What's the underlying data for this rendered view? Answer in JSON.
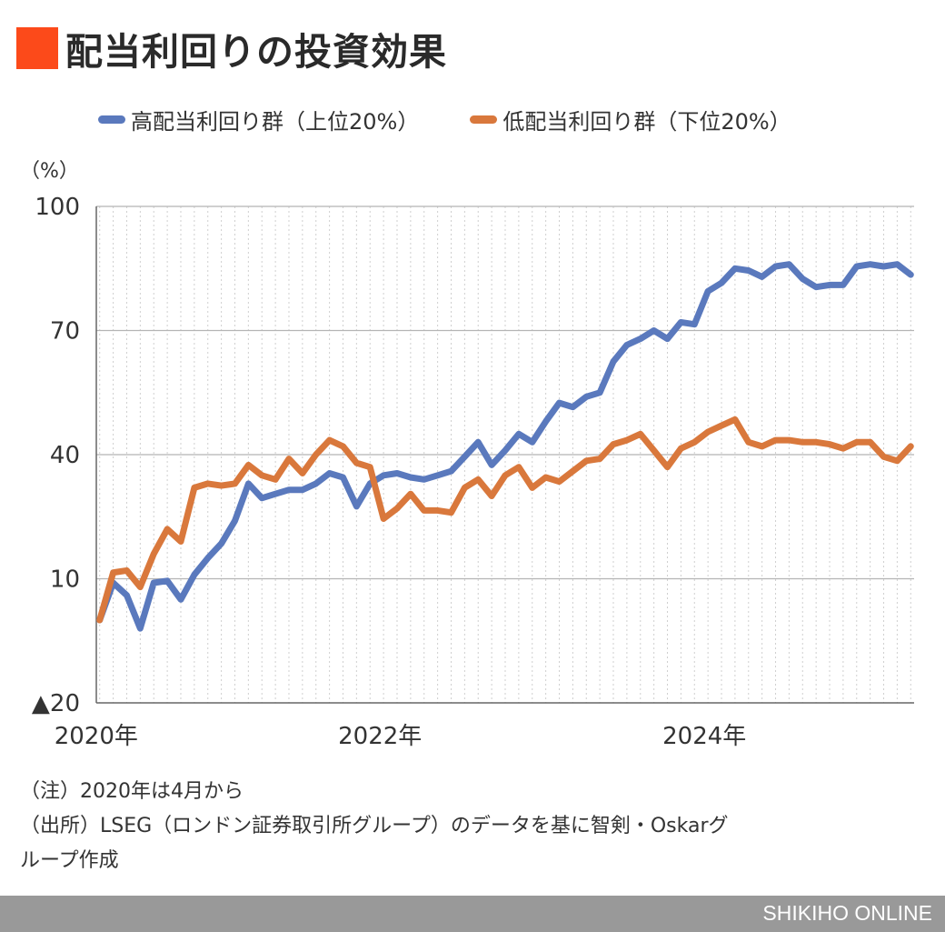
{
  "title": "配当利回りの投資効果",
  "colors": {
    "accent": "#fc4a1a",
    "high_series": "#5a79bd",
    "low_series": "#d9783c",
    "footer_bg": "#999999"
  },
  "chart_data": {
    "type": "line",
    "unit_label": "（%）",
    "ylim": [
      -20,
      100
    ],
    "yticks": [
      100,
      70,
      40,
      10,
      -20
    ],
    "ytick_labels": [
      "100",
      "70",
      "40",
      "10",
      "▲20"
    ],
    "x_start": "2020-04",
    "x_labels": [
      {
        "label": "2020年",
        "index": 0
      },
      {
        "label": "2022年",
        "index": 21
      },
      {
        "label": "2024年",
        "index": 45
      }
    ],
    "series": [
      {
        "name": "高配当利回り群（上位20%）",
        "color": "#5a79bd",
        "values": [
          0,
          9,
          6,
          -2,
          9,
          9.5,
          5,
          11,
          15,
          18.5,
          24,
          33,
          29.5,
          30.5,
          31.5,
          31.5,
          33,
          35.5,
          34.5,
          27.5,
          33,
          35,
          35.5,
          34.5,
          34,
          35,
          36,
          39.5,
          43,
          37.5,
          41,
          45,
          43,
          48,
          52.5,
          51.5,
          54,
          55,
          62.5,
          66.5,
          68,
          70,
          68,
          72,
          71.5,
          79.5,
          81.5,
          85,
          84.5,
          83,
          85.5,
          86,
          82.5,
          80.5,
          81,
          81,
          85.5,
          86,
          85.5,
          86,
          83.5
        ]
      },
      {
        "name": "低配当利回り群（下位20%）",
        "color": "#d9783c",
        "values": [
          0,
          11.5,
          12,
          8,
          16,
          22,
          19,
          32,
          33,
          32.5,
          33,
          37.5,
          35,
          34,
          39,
          35.5,
          40,
          43.5,
          42,
          38,
          37,
          24.5,
          27,
          30.5,
          26.5,
          26.5,
          26,
          32,
          34,
          30,
          35,
          37,
          32,
          34.5,
          33.5,
          36,
          38.5,
          39,
          42.5,
          43.5,
          45,
          41,
          37,
          41.5,
          43,
          45.5,
          47,
          48.5,
          43,
          42,
          43.5,
          43.5,
          43,
          43,
          42.5,
          41.5,
          43,
          43,
          39.5,
          38.5,
          42
        ]
      }
    ]
  },
  "notes": [
    "（注）2020年は4月から",
    "（出所）LSEG（ロンドン証券取引所グループ）のデータを基に智剣・Oskarグ",
    "ループ作成"
  ],
  "footer_brand": "SHIKIHO ONLINE"
}
